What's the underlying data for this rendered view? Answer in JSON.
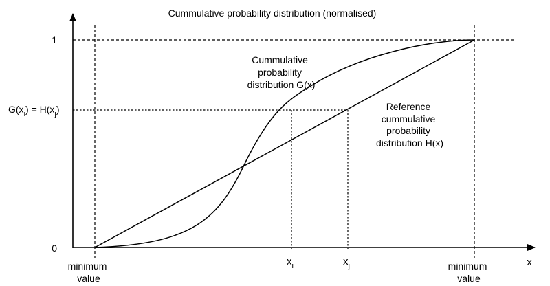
{
  "title": "Cummulative probability distribution (normalised)",
  "axes": {
    "x_label": "x",
    "y_label_top": "1",
    "y_label_zero": "0",
    "x_min": {
      "line1": "minimum",
      "line2": "value"
    },
    "x_max": {
      "line1": "minimum",
      "line2": "value"
    }
  },
  "markers": {
    "xi": {
      "base": "x",
      "sub": "i"
    },
    "xj": {
      "base": "x",
      "sub": "j"
    },
    "equality": {
      "p1": "G(x",
      "s1": "i",
      "p2": ") = H(x",
      "s2": "j",
      "p3": ")"
    }
  },
  "curve_g": {
    "line1": "Cummulative",
    "line2": "probability",
    "line3": "distribution G(x)"
  },
  "curve_h": {
    "line1": "Reference",
    "line2": "cummulative",
    "line3": "probability",
    "line4": "distribution H(x)"
  }
}
